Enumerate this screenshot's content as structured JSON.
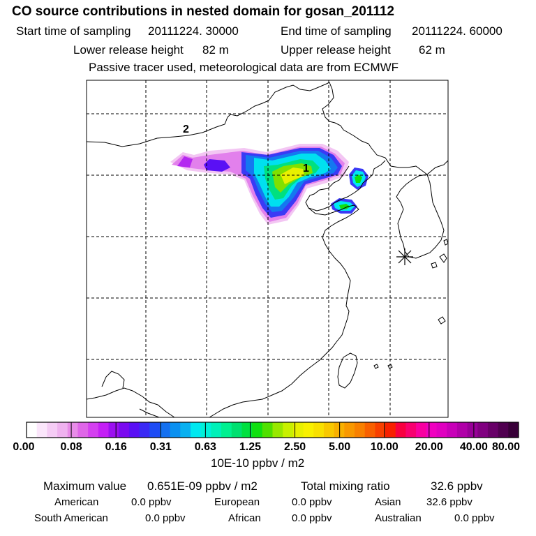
{
  "title": "CO  source contributions in nested domain for gosan_201112",
  "header": {
    "start_label": "Start time of sampling",
    "start_value": "20111224. 30000",
    "end_label": "End time of sampling",
    "end_value": "20111224. 60000",
    "lower_label": "Lower release height",
    "lower_value": "82 m",
    "upper_label": "Upper release height",
    "upper_value": "62 m",
    "note": "Passive tracer used, meteorological data are from ECMWF"
  },
  "map": {
    "region_labels": [
      "1",
      "2"
    ],
    "receptor_marker": "asterisk-marker",
    "colors": {
      "grid": "#000000",
      "coast": "#000000",
      "frame": "#000000"
    }
  },
  "colorbar": {
    "tick_labels": [
      "0.00",
      "0.08",
      "0.16",
      "0.31",
      "0.63",
      "1.25",
      "2.50",
      "5.00",
      "10.00",
      "20.00",
      "40.00",
      "80.00"
    ],
    "colors": [
      "#ffffff",
      "#fbe6fb",
      "#f5ccf5",
      "#efb2ef",
      "#e88ce8",
      "#df66e8",
      "#d440f0",
      "#c41ff5",
      "#9c10f0",
      "#7a0af0",
      "#5a10f5",
      "#3a2af5",
      "#1e4cf5",
      "#1470f0",
      "#0a90f0",
      "#08b0f0",
      "#00e8f0",
      "#00f0d8",
      "#00f0b8",
      "#00f090",
      "#00e070",
      "#00e040",
      "#10e010",
      "#50e000",
      "#98e800",
      "#c8f000",
      "#e8f000",
      "#f8f000",
      "#f8e000",
      "#f8c800",
      "#f8b000",
      "#f89800",
      "#f88000",
      "#f86000",
      "#f84000",
      "#f82000",
      "#f80040",
      "#f80070",
      "#f800a0",
      "#f000c0",
      "#e000c0",
      "#c800b8",
      "#b000a8",
      "#980098",
      "#800080",
      "#680068",
      "#500050",
      "#380038"
    ],
    "unit": "10E-10 ppbv / m2"
  },
  "summary": {
    "max_label": "Maximum value",
    "max_value": "0.651E-09 ppbv / m2",
    "total_label": "Total mixing ratio",
    "total_value": "32.6 ppbv",
    "regions": [
      {
        "name": "American",
        "value": "0.0 ppbv"
      },
      {
        "name": "European",
        "value": "0.0 ppbv"
      },
      {
        "name": "Asian",
        "value": "32.6 ppbv"
      },
      {
        "name": "South American",
        "value": "0.0 ppbv"
      },
      {
        "name": "African",
        "value": "0.0 ppbv"
      },
      {
        "name": "Australian",
        "value": "0.0 ppbv"
      }
    ]
  }
}
